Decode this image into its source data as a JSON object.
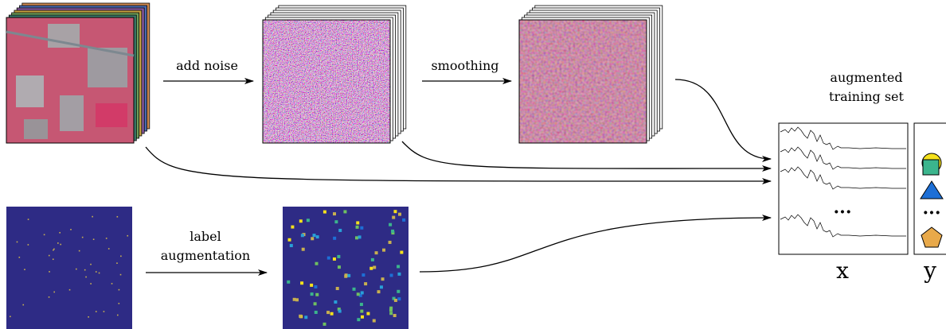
{
  "labels": {
    "add_noise": "add noise",
    "smoothing": "smoothing",
    "augmented_training_set": [
      "augmented",
      "training set"
    ],
    "label_augmentation": [
      "label",
      "augmentation"
    ],
    "x": "x",
    "y": "y",
    "ellipsis_x": "···",
    "ellipsis_y": "···"
  }
}
